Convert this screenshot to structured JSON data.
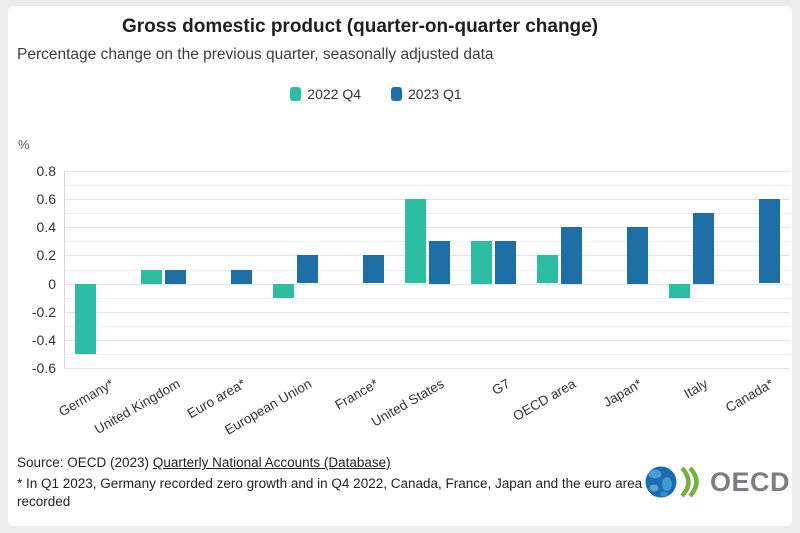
{
  "header": {
    "title": "Gross domestic product (quarter-on-quarter change)",
    "subtitle": "Percentage change on the previous quarter, seasonally adjusted data"
  },
  "chart_data": {
    "type": "bar",
    "categories": [
      "Germany*",
      "United Kingdom",
      "Euro area*",
      "European Union",
      "France*",
      "United States",
      "G7",
      "OECD area",
      "Japan*",
      "Italy",
      "Canada*"
    ],
    "series": [
      {
        "name": "2022 Q4",
        "color": "#2dbda3",
        "values": [
          -0.5,
          0.1,
          null,
          -0.1,
          null,
          0.6,
          0.3,
          0.2,
          null,
          -0.1,
          null
        ]
      },
      {
        "name": "2023 Q1",
        "color": "#1e6fa6",
        "values": [
          null,
          0.1,
          0.1,
          0.2,
          0.2,
          0.3,
          0.3,
          0.4,
          0.4,
          0.5,
          0.6
        ]
      }
    ],
    "title": "Gross domestic product (quarter-on-quarter change)",
    "xlabel": "",
    "ylabel": "%",
    "ylim": [
      -0.6,
      0.8
    ],
    "ytick_step": 0.2,
    "grid_step": 0.1,
    "ytick_labels": [
      "0.8",
      "0.6",
      "0.4",
      "0.2",
      "0",
      "-0.2",
      "-0.4",
      "-0.6"
    ],
    "grid": true,
    "legend_position": "top"
  },
  "footer": {
    "source_prefix": "Source: OECD (2023) ",
    "source_link": "Quarterly National Accounts (Database)",
    "footnote": "* In Q1 2023, Germany recorded zero growth and in Q4 2022, Canada, France, Japan and the euro area recorded",
    "logo_text": "OECD"
  }
}
